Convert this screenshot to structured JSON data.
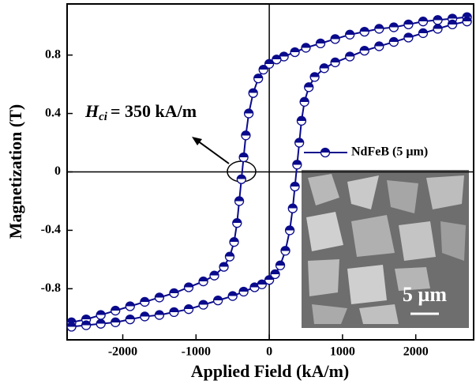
{
  "chart_data": {
    "type": "line",
    "xlabel": "Applied Field (kA/m)",
    "ylabel": "Magnetization (T)",
    "xlim": [
      -2760,
      2790
    ],
    "ylim": [
      -1.15,
      1.15
    ],
    "xticks": [
      -2000,
      -1000,
      0,
      1000,
      2000
    ],
    "yticks": [
      -0.8,
      -0.4,
      0,
      0.4,
      0.8
    ],
    "legend": "right",
    "annotation": {
      "symbol": "H",
      "subscript": "ci",
      "text": "= 350 kA/m"
    },
    "inset": {
      "scale_label": "5 µm"
    },
    "series": [
      {
        "name": "NdFeB (5 µm)",
        "color": "#0a0a8c",
        "x": [
          2700,
          2500,
          2300,
          2100,
          1900,
          1700,
          1500,
          1300,
          1100,
          900,
          700,
          500,
          350,
          200,
          100,
          0,
          -80,
          -150,
          -220,
          -280,
          -320,
          -350,
          -380,
          -410,
          -440,
          -480,
          -540,
          -620,
          -750,
          -900,
          -1100,
          -1300,
          -1500,
          -1700,
          -1900,
          -2100,
          -2300,
          -2500,
          -2700,
          -2700,
          -2500,
          -2300,
          -2100,
          -1900,
          -1700,
          -1500,
          -1300,
          -1100,
          -900,
          -700,
          -500,
          -350,
          -200,
          -100,
          0,
          80,
          150,
          220,
          280,
          320,
          350,
          380,
          410,
          440,
          480,
          540,
          620,
          750,
          900,
          1100,
          1300,
          1500,
          1700,
          1900,
          2100,
          2300,
          2500,
          2700
        ],
        "values": [
          1.06,
          1.05,
          1.04,
          1.03,
          1.01,
          0.99,
          0.98,
          0.96,
          0.94,
          0.91,
          0.88,
          0.85,
          0.82,
          0.79,
          0.77,
          0.74,
          0.7,
          0.64,
          0.54,
          0.4,
          0.25,
          0.1,
          -0.05,
          -0.2,
          -0.35,
          -0.48,
          -0.58,
          -0.65,
          -0.71,
          -0.75,
          -0.79,
          -0.83,
          -0.86,
          -0.89,
          -0.92,
          -0.95,
          -0.98,
          -1.01,
          -1.03,
          -1.06,
          -1.05,
          -1.04,
          -1.03,
          -1.01,
          -0.99,
          -0.98,
          -0.96,
          -0.94,
          -0.91,
          -0.88,
          -0.85,
          -0.82,
          -0.79,
          -0.77,
          -0.74,
          -0.7,
          -0.64,
          -0.54,
          -0.4,
          -0.25,
          -0.1,
          0.05,
          0.2,
          0.35,
          0.48,
          0.58,
          0.65,
          0.71,
          0.75,
          0.79,
          0.83,
          0.86,
          0.89,
          0.92,
          0.95,
          0.98,
          1.01,
          1.03
        ]
      }
    ]
  }
}
